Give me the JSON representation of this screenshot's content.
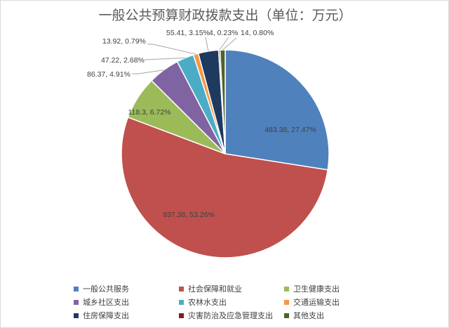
{
  "chart_data": {
    "type": "pie",
    "title": "一般公共预算财政拨款支出（单位：万元）",
    "categories": [
      "一般公共服务",
      "社会保障和就业",
      "卫生健康支出",
      "城乡社区支出",
      "农林水支出",
      "交通运输支出",
      "住房保障支出",
      "灾害防治及应急管理支出",
      "其他支出"
    ],
    "values": [
      483.38,
      937.38,
      118.3,
      86.37,
      47.22,
      13.92,
      55.41,
      4,
      14
    ],
    "data_labels": [
      "483.38, 27.47%",
      "937.38, 53.26%",
      "118.3, 6.72%",
      "86.37, 4.91%",
      "47.22, 2.68%",
      "13.92, 0.79%",
      "55.41, 3.15%",
      "4, 0.23%",
      "14, 0.80%"
    ],
    "colors": [
      "#4f81bd",
      "#c0504d",
      "#9bbb59",
      "#8064a2",
      "#4bacc6",
      "#f79646",
      "#1f3a5f",
      "#7f1f1f",
      "#4f6228"
    ],
    "legend_position": "bottom"
  }
}
